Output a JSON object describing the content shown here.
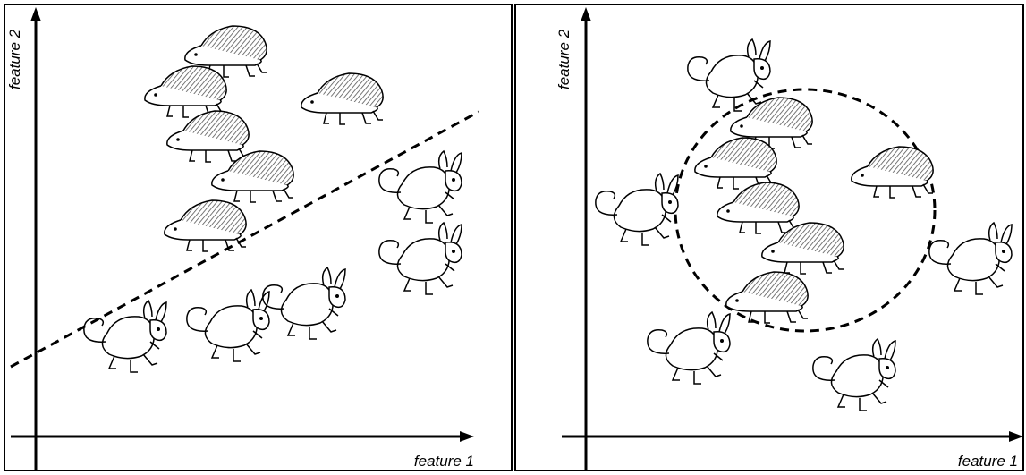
{
  "panels": [
    {
      "x_label": "feature 1",
      "y_label": "feature 2"
    },
    {
      "x_label": "feature 1",
      "y_label": "feature 2"
    }
  ]
}
